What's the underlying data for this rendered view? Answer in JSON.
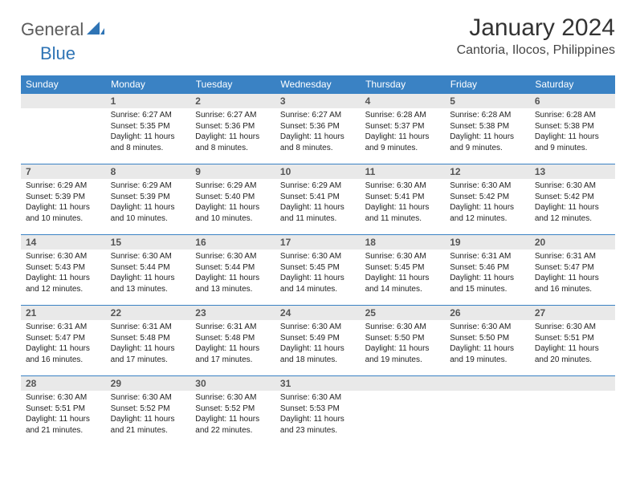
{
  "logo": {
    "text1": "General",
    "text2": "Blue",
    "shape_color": "#2f74b5"
  },
  "title": "January 2024",
  "location": "Cantoria, Ilocos, Philippines",
  "colors": {
    "header_bg": "#3a82c4",
    "header_text": "#ffffff",
    "daynum_bg": "#e9e9e9",
    "body_text": "#222222",
    "border": "#3a82c4",
    "background": "#ffffff"
  },
  "typography": {
    "title_fontsize": 30,
    "location_fontsize": 16,
    "weekday_fontsize": 12,
    "daynum_fontsize": 12,
    "body_fontsize": 10
  },
  "weekdays": [
    "Sunday",
    "Monday",
    "Tuesday",
    "Wednesday",
    "Thursday",
    "Friday",
    "Saturday"
  ],
  "weeks": [
    [
      null,
      {
        "n": "1",
        "sr": "Sunrise: 6:27 AM",
        "ss": "Sunset: 5:35 PM",
        "d1": "Daylight: 11 hours",
        "d2": "and 8 minutes."
      },
      {
        "n": "2",
        "sr": "Sunrise: 6:27 AM",
        "ss": "Sunset: 5:36 PM",
        "d1": "Daylight: 11 hours",
        "d2": "and 8 minutes."
      },
      {
        "n": "3",
        "sr": "Sunrise: 6:27 AM",
        "ss": "Sunset: 5:36 PM",
        "d1": "Daylight: 11 hours",
        "d2": "and 8 minutes."
      },
      {
        "n": "4",
        "sr": "Sunrise: 6:28 AM",
        "ss": "Sunset: 5:37 PM",
        "d1": "Daylight: 11 hours",
        "d2": "and 9 minutes."
      },
      {
        "n": "5",
        "sr": "Sunrise: 6:28 AM",
        "ss": "Sunset: 5:38 PM",
        "d1": "Daylight: 11 hours",
        "d2": "and 9 minutes."
      },
      {
        "n": "6",
        "sr": "Sunrise: 6:28 AM",
        "ss": "Sunset: 5:38 PM",
        "d1": "Daylight: 11 hours",
        "d2": "and 9 minutes."
      }
    ],
    [
      {
        "n": "7",
        "sr": "Sunrise: 6:29 AM",
        "ss": "Sunset: 5:39 PM",
        "d1": "Daylight: 11 hours",
        "d2": "and 10 minutes."
      },
      {
        "n": "8",
        "sr": "Sunrise: 6:29 AM",
        "ss": "Sunset: 5:39 PM",
        "d1": "Daylight: 11 hours",
        "d2": "and 10 minutes."
      },
      {
        "n": "9",
        "sr": "Sunrise: 6:29 AM",
        "ss": "Sunset: 5:40 PM",
        "d1": "Daylight: 11 hours",
        "d2": "and 10 minutes."
      },
      {
        "n": "10",
        "sr": "Sunrise: 6:29 AM",
        "ss": "Sunset: 5:41 PM",
        "d1": "Daylight: 11 hours",
        "d2": "and 11 minutes."
      },
      {
        "n": "11",
        "sr": "Sunrise: 6:30 AM",
        "ss": "Sunset: 5:41 PM",
        "d1": "Daylight: 11 hours",
        "d2": "and 11 minutes."
      },
      {
        "n": "12",
        "sr": "Sunrise: 6:30 AM",
        "ss": "Sunset: 5:42 PM",
        "d1": "Daylight: 11 hours",
        "d2": "and 12 minutes."
      },
      {
        "n": "13",
        "sr": "Sunrise: 6:30 AM",
        "ss": "Sunset: 5:42 PM",
        "d1": "Daylight: 11 hours",
        "d2": "and 12 minutes."
      }
    ],
    [
      {
        "n": "14",
        "sr": "Sunrise: 6:30 AM",
        "ss": "Sunset: 5:43 PM",
        "d1": "Daylight: 11 hours",
        "d2": "and 12 minutes."
      },
      {
        "n": "15",
        "sr": "Sunrise: 6:30 AM",
        "ss": "Sunset: 5:44 PM",
        "d1": "Daylight: 11 hours",
        "d2": "and 13 minutes."
      },
      {
        "n": "16",
        "sr": "Sunrise: 6:30 AM",
        "ss": "Sunset: 5:44 PM",
        "d1": "Daylight: 11 hours",
        "d2": "and 13 minutes."
      },
      {
        "n": "17",
        "sr": "Sunrise: 6:30 AM",
        "ss": "Sunset: 5:45 PM",
        "d1": "Daylight: 11 hours",
        "d2": "and 14 minutes."
      },
      {
        "n": "18",
        "sr": "Sunrise: 6:30 AM",
        "ss": "Sunset: 5:45 PM",
        "d1": "Daylight: 11 hours",
        "d2": "and 14 minutes."
      },
      {
        "n": "19",
        "sr": "Sunrise: 6:31 AM",
        "ss": "Sunset: 5:46 PM",
        "d1": "Daylight: 11 hours",
        "d2": "and 15 minutes."
      },
      {
        "n": "20",
        "sr": "Sunrise: 6:31 AM",
        "ss": "Sunset: 5:47 PM",
        "d1": "Daylight: 11 hours",
        "d2": "and 16 minutes."
      }
    ],
    [
      {
        "n": "21",
        "sr": "Sunrise: 6:31 AM",
        "ss": "Sunset: 5:47 PM",
        "d1": "Daylight: 11 hours",
        "d2": "and 16 minutes."
      },
      {
        "n": "22",
        "sr": "Sunrise: 6:31 AM",
        "ss": "Sunset: 5:48 PM",
        "d1": "Daylight: 11 hours",
        "d2": "and 17 minutes."
      },
      {
        "n": "23",
        "sr": "Sunrise: 6:31 AM",
        "ss": "Sunset: 5:48 PM",
        "d1": "Daylight: 11 hours",
        "d2": "and 17 minutes."
      },
      {
        "n": "24",
        "sr": "Sunrise: 6:30 AM",
        "ss": "Sunset: 5:49 PM",
        "d1": "Daylight: 11 hours",
        "d2": "and 18 minutes."
      },
      {
        "n": "25",
        "sr": "Sunrise: 6:30 AM",
        "ss": "Sunset: 5:50 PM",
        "d1": "Daylight: 11 hours",
        "d2": "and 19 minutes."
      },
      {
        "n": "26",
        "sr": "Sunrise: 6:30 AM",
        "ss": "Sunset: 5:50 PM",
        "d1": "Daylight: 11 hours",
        "d2": "and 19 minutes."
      },
      {
        "n": "27",
        "sr": "Sunrise: 6:30 AM",
        "ss": "Sunset: 5:51 PM",
        "d1": "Daylight: 11 hours",
        "d2": "and 20 minutes."
      }
    ],
    [
      {
        "n": "28",
        "sr": "Sunrise: 6:30 AM",
        "ss": "Sunset: 5:51 PM",
        "d1": "Daylight: 11 hours",
        "d2": "and 21 minutes."
      },
      {
        "n": "29",
        "sr": "Sunrise: 6:30 AM",
        "ss": "Sunset: 5:52 PM",
        "d1": "Daylight: 11 hours",
        "d2": "and 21 minutes."
      },
      {
        "n": "30",
        "sr": "Sunrise: 6:30 AM",
        "ss": "Sunset: 5:52 PM",
        "d1": "Daylight: 11 hours",
        "d2": "and 22 minutes."
      },
      {
        "n": "31",
        "sr": "Sunrise: 6:30 AM",
        "ss": "Sunset: 5:53 PM",
        "d1": "Daylight: 11 hours",
        "d2": "and 23 minutes."
      },
      null,
      null,
      null
    ]
  ]
}
